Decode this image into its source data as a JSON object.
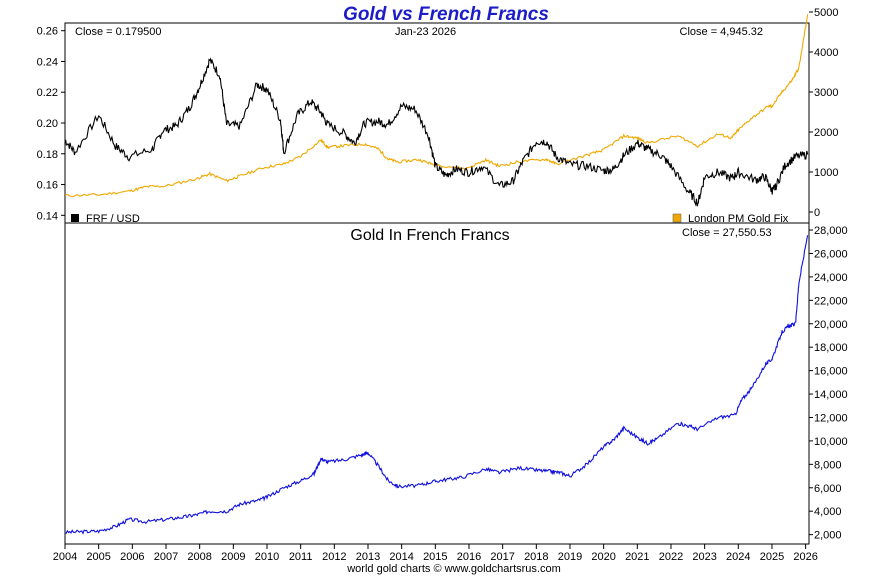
{
  "title": "Gold vs French Francs",
  "top_panel": {
    "close_left": "Close = 0.179500",
    "date": "Jan-23  2026",
    "close_right": "Close = 4,945.32",
    "legend_left": "FRF / USD",
    "legend_right": "London PM Gold Fix",
    "left_ticks": [
      "0.14",
      "0.16",
      "0.18",
      "0.20",
      "0.22",
      "0.24",
      "0.26"
    ],
    "right_ticks": [
      "0",
      "1000",
      "2000",
      "3000",
      "4000",
      "5000"
    ]
  },
  "bottom_panel": {
    "title": "Gold In French Francs",
    "close": "Close = 27,550.53",
    "right_ticks": [
      "2,000",
      "4,000",
      "6,000",
      "8,000",
      "10,000",
      "12,000",
      "14,000",
      "16,000",
      "18,000",
      "20,000",
      "22,000",
      "24,000",
      "26,000",
      "28,000"
    ]
  },
  "x_ticks": [
    "2004",
    "2005",
    "2006",
    "2007",
    "2008",
    "2009",
    "2010",
    "2011",
    "2012",
    "2013",
    "2014",
    "2015",
    "2016",
    "2017",
    "2018",
    "2019",
    "2020",
    "2021",
    "2022",
    "2023",
    "2024",
    "2025",
    "2026"
  ],
  "footer": "world gold charts © www.goldchartsrus.com",
  "colors": {
    "frf": "#000000",
    "gold": "#f0a800",
    "gold_frf": "#1010e0",
    "title": "#1c1cc8"
  },
  "chart_data": [
    {
      "type": "line",
      "title": "Gold vs French Francs",
      "xlabel": "",
      "ylabel": "",
      "xlim": [
        2004,
        2026.1
      ],
      "series": [
        {
          "name": "FRF / USD",
          "axis": "left",
          "ylim": [
            0.135,
            0.265
          ],
          "x": [
            2004.0,
            2004.3,
            2005.0,
            2005.5,
            2005.9,
            2006.6,
            2006.9,
            2007.3,
            2007.7,
            2008.0,
            2008.3,
            2008.6,
            2008.8,
            2009.2,
            2009.7,
            2010.0,
            2010.4,
            2010.5,
            2010.9,
            2011.3,
            2011.6,
            2011.8,
            2012.3,
            2012.6,
            2012.9,
            2013.3,
            2013.6,
            2014.0,
            2014.4,
            2014.8,
            2015.0,
            2015.3,
            2015.6,
            2016.0,
            2016.4,
            2016.9,
            2017.3,
            2017.6,
            2018.0,
            2018.3,
            2018.6,
            2019.0,
            2019.5,
            2020.0,
            2020.3,
            2020.6,
            2021.0,
            2021.3,
            2021.7,
            2022.0,
            2022.5,
            2022.8,
            2023.0,
            2023.4,
            2023.8,
            2024.0,
            2024.5,
            2024.8,
            2025.0,
            2025.1,
            2025.4,
            2025.7,
            2026.06
          ],
          "y": [
            0.189,
            0.181,
            0.205,
            0.185,
            0.178,
            0.183,
            0.195,
            0.198,
            0.21,
            0.224,
            0.241,
            0.231,
            0.199,
            0.198,
            0.225,
            0.222,
            0.202,
            0.181,
            0.205,
            0.214,
            0.207,
            0.199,
            0.193,
            0.187,
            0.2,
            0.201,
            0.199,
            0.211,
            0.209,
            0.192,
            0.172,
            0.166,
            0.17,
            0.168,
            0.172,
            0.159,
            0.162,
            0.175,
            0.188,
            0.188,
            0.178,
            0.173,
            0.172,
            0.169,
            0.17,
            0.179,
            0.187,
            0.183,
            0.179,
            0.172,
            0.156,
            0.148,
            0.165,
            0.168,
            0.164,
            0.168,
            0.163,
            0.165,
            0.156,
            0.158,
            0.173,
            0.178,
            0.1795
          ]
        },
        {
          "name": "London PM Gold Fix",
          "axis": "right",
          "ylim": [
            0,
            5000
          ],
          "x": [
            2004.0,
            2005.0,
            2005.9,
            2006.4,
            2007.0,
            2007.9,
            2008.3,
            2008.8,
            2009.2,
            2009.9,
            2010.5,
            2011.0,
            2011.6,
            2011.8,
            2012.3,
            2012.9,
            2013.3,
            2013.6,
            2013.9,
            2014.5,
            2014.9,
            2015.9,
            2016.5,
            2016.9,
            2017.5,
            2018.3,
            2018.6,
            2019.5,
            2020.0,
            2020.6,
            2021.0,
            2021.3,
            2022.2,
            2022.8,
            2023.4,
            2023.8,
            2024.0,
            2024.4,
            2024.9,
            2025.0,
            2025.3,
            2025.6,
            2025.8,
            2026.06
          ],
          "y": [
            410,
            430,
            520,
            630,
            650,
            830,
            950,
            780,
            900,
            1110,
            1200,
            1390,
            1800,
            1620,
            1660,
            1700,
            1580,
            1320,
            1250,
            1310,
            1200,
            1080,
            1300,
            1150,
            1260,
            1320,
            1200,
            1420,
            1550,
            1900,
            1850,
            1730,
            1900,
            1650,
            1950,
            1850,
            2050,
            2350,
            2650,
            2640,
            3000,
            3300,
            3600,
            4945
          ]
        }
      ]
    },
    {
      "type": "line",
      "title": "Gold In French Francs",
      "xlabel": "",
      "ylabel": "",
      "xlim": [
        2004,
        2026.1
      ],
      "ylim": [
        1200,
        28600
      ],
      "series": [
        {
          "name": "Gold In French Francs",
          "x": [
            2004.0,
            2004.5,
            2005.0,
            2005.5,
            2005.9,
            2006.4,
            2007.0,
            2007.5,
            2007.9,
            2008.3,
            2008.8,
            2009.2,
            2009.7,
            2010.0,
            2010.5,
            2011.0,
            2011.4,
            2011.6,
            2011.8,
            2012.3,
            2012.8,
            2013.0,
            2013.3,
            2013.6,
            2013.9,
            2014.5,
            2014.9,
            2015.3,
            2015.8,
            2016.5,
            2016.9,
            2017.5,
            2018.0,
            2018.4,
            2018.7,
            2019.0,
            2019.5,
            2020.0,
            2020.3,
            2020.6,
            2021.0,
            2021.3,
            2021.6,
            2022.2,
            2022.5,
            2022.8,
            2023.4,
            2023.9,
            2024.1,
            2024.4,
            2024.8,
            2025.0,
            2025.3,
            2025.5,
            2025.7,
            2025.8,
            2026.06
          ],
          "y": [
            2200,
            2250,
            2300,
            2700,
            3300,
            3100,
            3300,
            3500,
            3700,
            4000,
            4000,
            4600,
            4900,
            5200,
            6000,
            6600,
            7200,
            8500,
            8200,
            8400,
            8800,
            9000,
            7900,
            6600,
            6100,
            6200,
            6500,
            6700,
            6900,
            7600,
            7300,
            7700,
            7500,
            7400,
            7300,
            7000,
            8000,
            9500,
            10100,
            11100,
            10300,
            9800,
            10200,
            11500,
            11300,
            11000,
            12000,
            12200,
            13500,
            14500,
            16500,
            17000,
            19300,
            19800,
            20000,
            23500,
            27550
          ]
        }
      ]
    }
  ]
}
